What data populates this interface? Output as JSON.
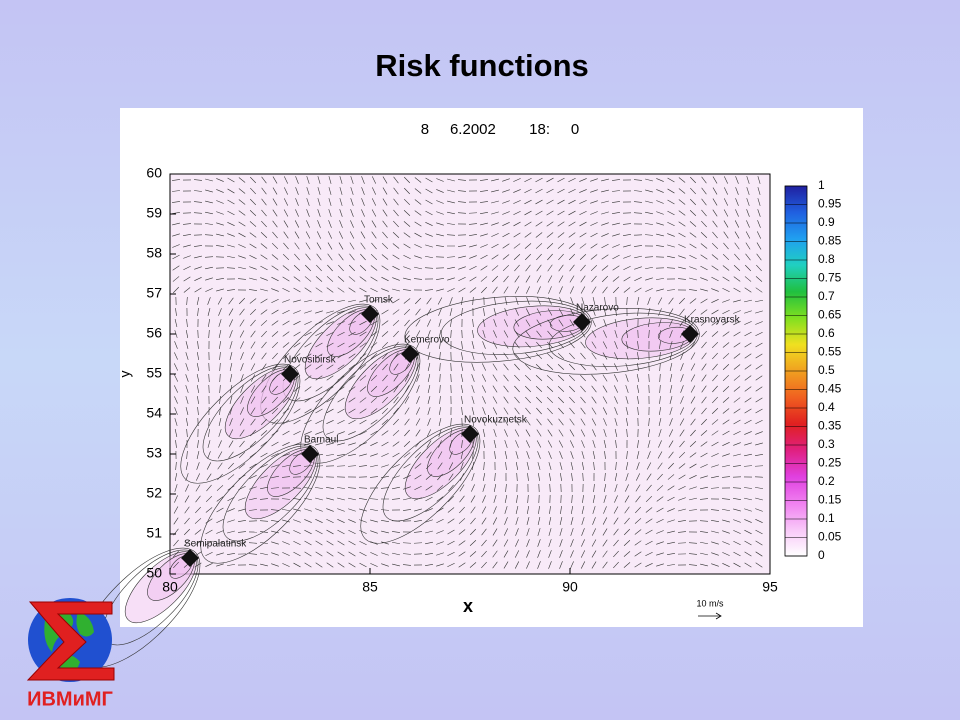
{
  "chart_data": {
    "type": "contour",
    "title": "Risk functions",
    "subtitle": "8     6.2002        18:     0",
    "x_label": "x",
    "y_label": "y",
    "xlim": [
      80,
      95
    ],
    "xticks": [
      80,
      85,
      90,
      95
    ],
    "ylim": [
      50,
      60
    ],
    "yticks": [
      50,
      51,
      52,
      53,
      54,
      55,
      56,
      57,
      58,
      59,
      60
    ],
    "points": [
      {
        "label": "Tomsk",
        "x": 85,
        "y": 56.5
      },
      {
        "label": "Nazarovo",
        "x": 90.3,
        "y": 56.3
      },
      {
        "label": "Krasnoyarsk",
        "x": 93,
        "y": 56
      },
      {
        "label": "Kemerovo",
        "x": 86,
        "y": 55.5
      },
      {
        "label": "Novosibirsk",
        "x": 83,
        "y": 55
      },
      {
        "label": "Novokuznetsk",
        "x": 87.5,
        "y": 53.5
      },
      {
        "label": "Barnaul",
        "x": 83.5,
        "y": 53
      },
      {
        "label": "Semipalatinsk",
        "x": 80.5,
        "y": 50.4
      }
    ],
    "colorbar": {
      "ticks": [
        0,
        0.05,
        0.1,
        0.15,
        0.2,
        0.25,
        0.3,
        0.35,
        0.4,
        0.45,
        0.5,
        0.55,
        0.6,
        0.65,
        0.7,
        0.75,
        0.8,
        0.85,
        0.9,
        0.95,
        1
      ],
      "colors": [
        "#ffffff",
        "#f8c8f8",
        "#f080f0",
        "#e040e0",
        "#e02080",
        "#e02020",
        "#f06020",
        "#f0a020",
        "#f0e020",
        "#80e020",
        "#20c040",
        "#20d0c0",
        "#20a0f0",
        "#2060e0",
        "#2020a0"
      ]
    },
    "vector_label": "10 m/s"
  },
  "logo": {
    "text": "ИВМиМГ"
  }
}
